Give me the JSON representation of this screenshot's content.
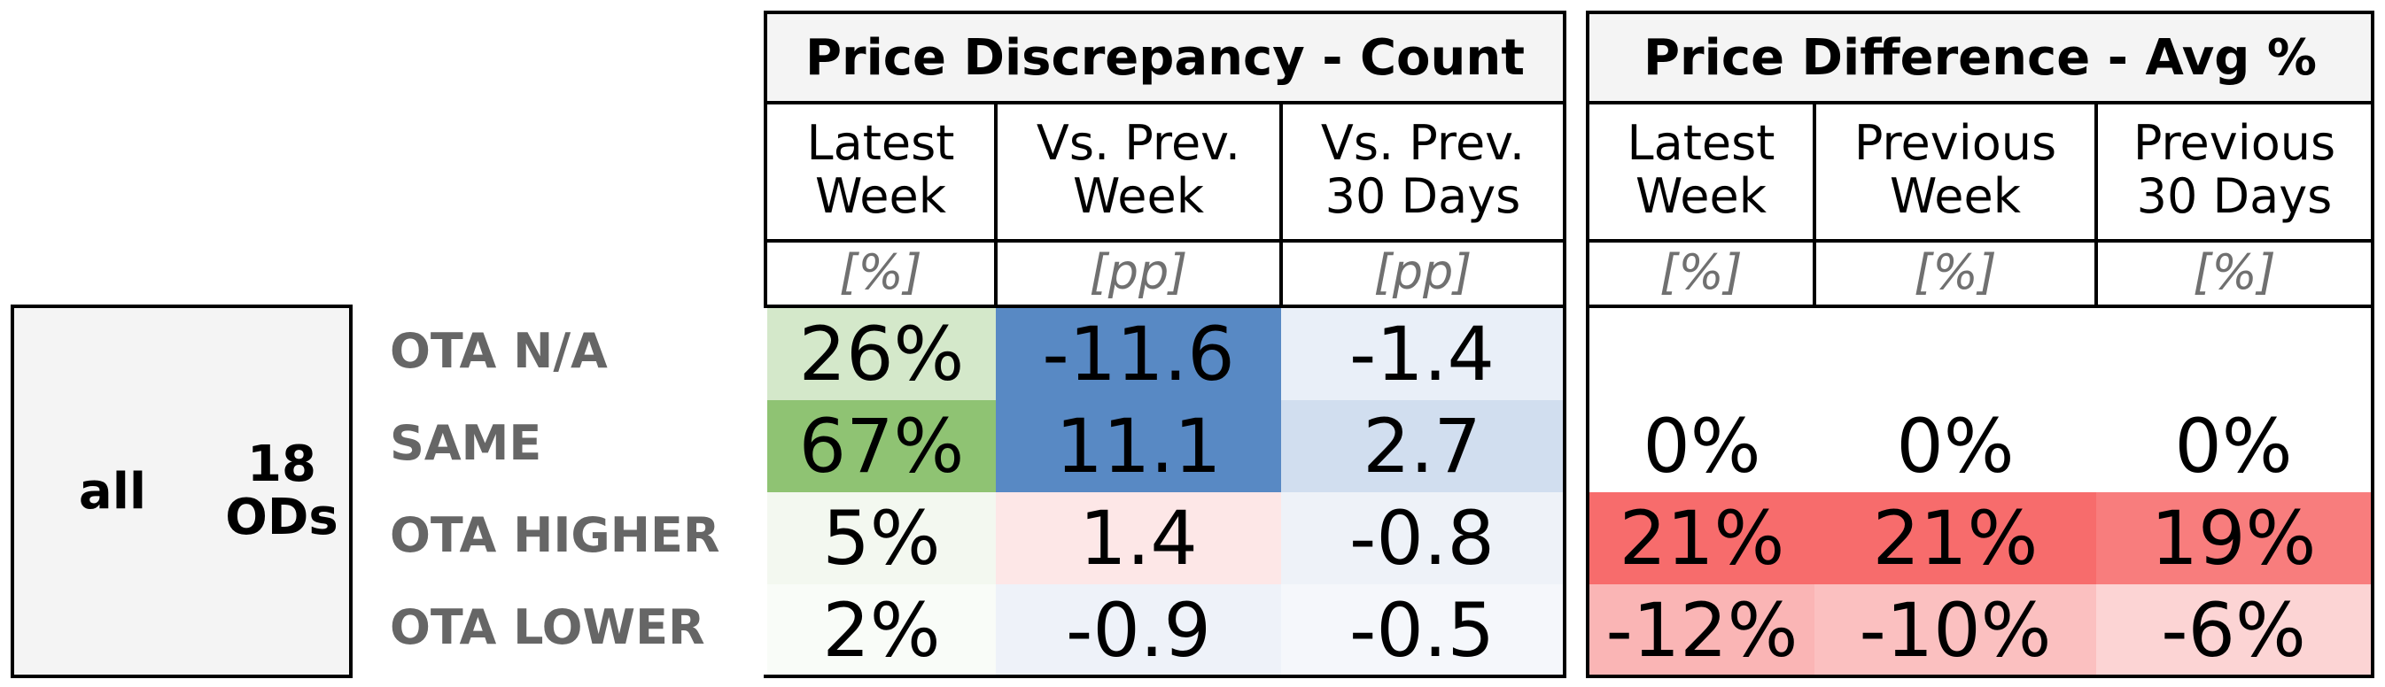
{
  "chart_data": {
    "type": "table",
    "tables": [
      {
        "title": "Price Discrepancy - Count",
        "columns": [
          {
            "label_lines": [
              "Latest",
              "Week"
            ],
            "unit": "[%]"
          },
          {
            "label_lines": [
              "Vs. Prev.",
              "Week"
            ],
            "unit": "[pp]"
          },
          {
            "label_lines": [
              "Vs. Prev.",
              "30 Days"
            ],
            "unit": "[pp]"
          }
        ]
      },
      {
        "title": "Price Difference - Avg %",
        "columns": [
          {
            "label_lines": [
              "Latest",
              "Week"
            ],
            "unit": "[%]"
          },
          {
            "label_lines": [
              "Previous",
              "Week"
            ],
            "unit": "[%]"
          },
          {
            "label_lines": [
              "Previous",
              "30 Days"
            ],
            "unit": "[%]"
          }
        ]
      }
    ],
    "group": {
      "label": "all",
      "sublabel_lines": [
        "18",
        "ODs"
      ]
    },
    "rows": [
      {
        "label": "OTA N/A",
        "count": [
          {
            "text": "26%",
            "value": 26
          },
          {
            "text": "-11.6",
            "value": -11.6
          },
          {
            "text": "-1.4",
            "value": -1.4
          }
        ],
        "diff": [
          {
            "text": "",
            "value": null
          },
          {
            "text": "",
            "value": null
          },
          {
            "text": "",
            "value": null
          }
        ]
      },
      {
        "label": "SAME",
        "count": [
          {
            "text": "67%",
            "value": 67
          },
          {
            "text": "11.1",
            "value": 11.1
          },
          {
            "text": "2.7",
            "value": 2.7
          }
        ],
        "diff": [
          {
            "text": "0%",
            "value": 0
          },
          {
            "text": "0%",
            "value": 0
          },
          {
            "text": "0%",
            "value": 0
          }
        ]
      },
      {
        "label": "OTA HIGHER",
        "count": [
          {
            "text": "5%",
            "value": 5
          },
          {
            "text": "1.4",
            "value": 1.4
          },
          {
            "text": "-0.8",
            "value": -0.8
          }
        ],
        "diff": [
          {
            "text": "21%",
            "value": 21
          },
          {
            "text": "21%",
            "value": 21
          },
          {
            "text": "19%",
            "value": 19
          }
        ]
      },
      {
        "label": "OTA LOWER",
        "count": [
          {
            "text": "2%",
            "value": 2
          },
          {
            "text": "-0.9",
            "value": -0.9
          },
          {
            "text": "-0.5",
            "value": -0.5
          }
        ],
        "diff": [
          {
            "text": "-12%",
            "value": -12
          },
          {
            "text": "-10%",
            "value": -10
          },
          {
            "text": "-6%",
            "value": -6
          }
        ]
      }
    ],
    "cell_colors": {
      "count": [
        [
          "#d4e8ca",
          "#5889c4",
          "#e9eff8"
        ],
        [
          "#8fc373",
          "#5889c4",
          "#d1deef"
        ],
        [
          "#f3f8f0",
          "#fde7e7",
          "#eef2f8"
        ],
        [
          "#f9fcf8",
          "#eef2f9",
          "#f5f7fb"
        ]
      ],
      "diff": [
        [
          "#ffffff",
          "#ffffff",
          "#ffffff"
        ],
        [
          "#ffffff",
          "#ffffff",
          "#ffffff"
        ],
        [
          "#f76c6c",
          "#f76c6c",
          "#f87d7d"
        ],
        [
          "#fab5b5",
          "#fbc0c0",
          "#fcd4d4"
        ]
      ]
    }
  }
}
